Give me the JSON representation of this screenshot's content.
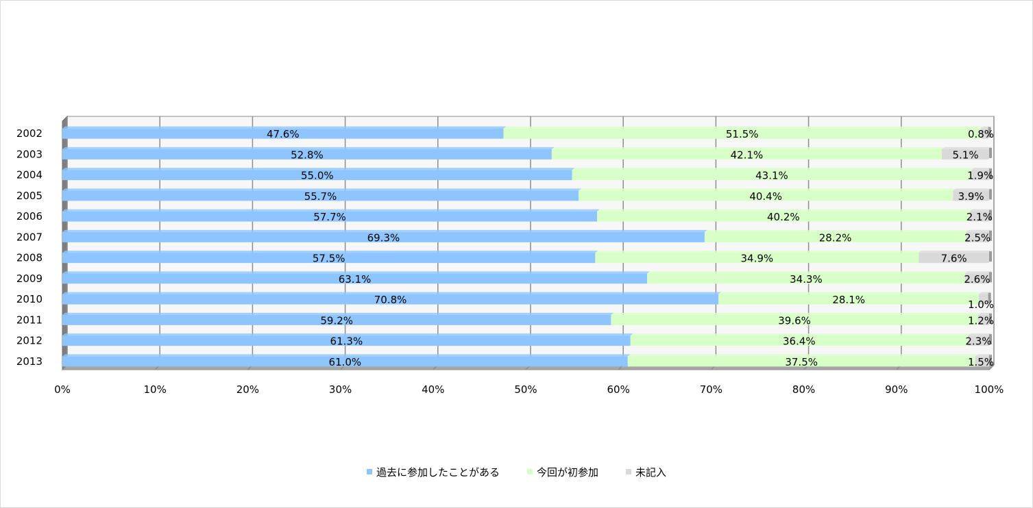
{
  "chart_data": {
    "type": "bar",
    "orientation": "horizontal",
    "stacked": "percent",
    "categories": [
      "2002",
      "2003",
      "2004",
      "2005",
      "2006",
      "2007",
      "2008",
      "2009",
      "2010",
      "2011",
      "2012",
      "2013"
    ],
    "series": [
      {
        "name": "過去に参加したことがある",
        "color": "#8ec5ff",
        "values": [
          47.6,
          52.8,
          55.0,
          55.7,
          57.7,
          69.3,
          57.5,
          63.1,
          70.8,
          59.2,
          61.3,
          61.0
        ],
        "labels": [
          "47.6%",
          "52.8%",
          "55.0%",
          "55.7%",
          "57.7%",
          "69.3%",
          "57.5%",
          "63.1%",
          "70.8%",
          "59.2%",
          "61.3%",
          "61.0%"
        ]
      },
      {
        "name": "今回が初参加",
        "color": "#d9ffc9",
        "values": [
          51.5,
          42.1,
          43.1,
          40.4,
          40.2,
          28.2,
          34.9,
          34.3,
          28.1,
          39.6,
          36.4,
          37.5
        ],
        "labels": [
          "51.5%",
          "42.1%",
          "43.1%",
          "40.4%",
          "40.2%",
          "28.2%",
          "34.9%",
          "34.3%",
          "28.1%",
          "39.6%",
          "36.4%",
          "37.5%"
        ]
      },
      {
        "name": "未記入",
        "color": "#d9d9d9",
        "values": [
          0.8,
          5.1,
          1.9,
          3.9,
          2.1,
          2.5,
          7.6,
          2.6,
          1.0,
          1.2,
          2.3,
          1.5
        ],
        "labels": [
          "0.8%",
          "5.1%",
          "1.9%",
          "3.9%",
          "2.1%",
          "2.5%",
          "7.6%",
          "2.6%",
          "1.0%",
          "1.2%",
          "2.3%",
          "1.5%"
        ]
      }
    ],
    "x_ticks": [
      "0%",
      "10%",
      "20%",
      "30%",
      "40%",
      "50%",
      "60%",
      "70%",
      "80%",
      "90%",
      "100%"
    ],
    "xlim": [
      0,
      100
    ],
    "grid": true,
    "legend_position": "bottom"
  }
}
